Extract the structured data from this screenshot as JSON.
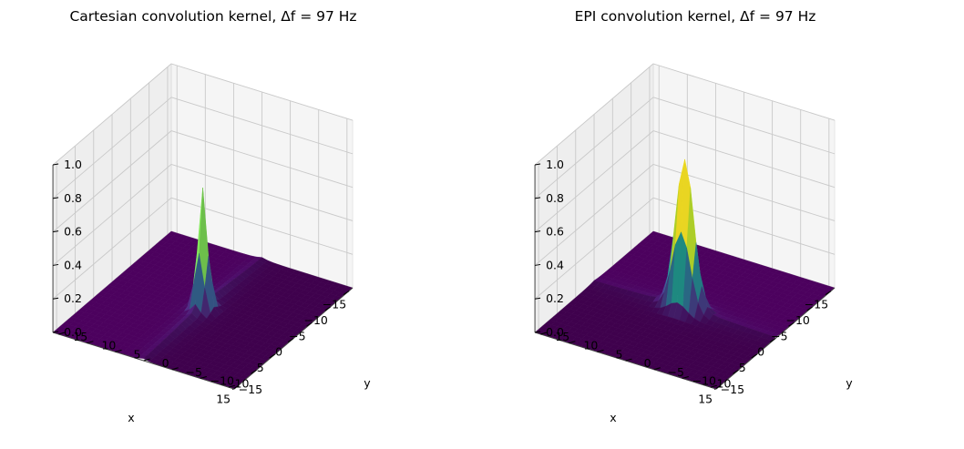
{
  "chart_data": [
    {
      "type": "surface3d",
      "title": "Cartesian convolution kernel, Δf = 97 Hz",
      "xlabel": "x",
      "ylabel": "y",
      "zlabel": "",
      "x_range": [
        -16,
        16
      ],
      "y_range": [
        -16,
        16
      ],
      "z_range": [
        0,
        1.0
      ],
      "x_ticks": [
        -15,
        -10,
        -5,
        0,
        5,
        10,
        15
      ],
      "y_ticks": [
        -15,
        -10,
        -5,
        0,
        5,
        10,
        15
      ],
      "z_ticks": [
        0.0,
        0.2,
        0.4,
        0.6,
        0.8,
        1.0
      ],
      "x_tick_labels": [
        "−15",
        "−10",
        "−5",
        "0",
        "5",
        "10",
        "15"
      ],
      "y_tick_labels": [
        "−15",
        "−10",
        "−5",
        "0",
        "5",
        "10",
        "15"
      ],
      "z_tick_labels": [
        "0.0",
        "0.2",
        "0.4",
        "0.6",
        "0.8",
        "1.0"
      ],
      "colormap": "viridis",
      "kernel": {
        "peak_height": 0.68,
        "width_x": 0.8,
        "width_y": 0.8,
        "ridge_along": "x",
        "ridge_amplitude": 0.05,
        "ridge_decay": 1.2
      }
    },
    {
      "type": "surface3d",
      "title": "EPI convolution kernel, Δf = 97 Hz",
      "xlabel": "x",
      "ylabel": "y",
      "zlabel": "",
      "x_range": [
        -16,
        16
      ],
      "y_range": [
        -16,
        16
      ],
      "z_range": [
        0,
        1.0
      ],
      "x_ticks": [
        -15,
        -10,
        -5,
        0,
        5,
        10,
        15
      ],
      "y_ticks": [
        -15,
        -10,
        -5,
        0,
        5,
        10,
        15
      ],
      "z_ticks": [
        0.0,
        0.2,
        0.4,
        0.6,
        0.8,
        1.0
      ],
      "x_tick_labels": [
        "−15",
        "−10",
        "−5",
        "0",
        "5",
        "10",
        "15"
      ],
      "y_tick_labels": [
        "−15",
        "−10",
        "−5",
        "0",
        "5",
        "10",
        "15"
      ],
      "z_tick_labels": [
        "0.0",
        "0.2",
        "0.4",
        "0.6",
        "0.8",
        "1.0"
      ],
      "colormap": "viridis",
      "kernel": {
        "peak_height": 0.87,
        "width_x": 0.9,
        "width_y": 1.6,
        "ridge_along": "y",
        "ridge_amplitude": 0.03,
        "ridge_decay": 1.6
      }
    }
  ]
}
